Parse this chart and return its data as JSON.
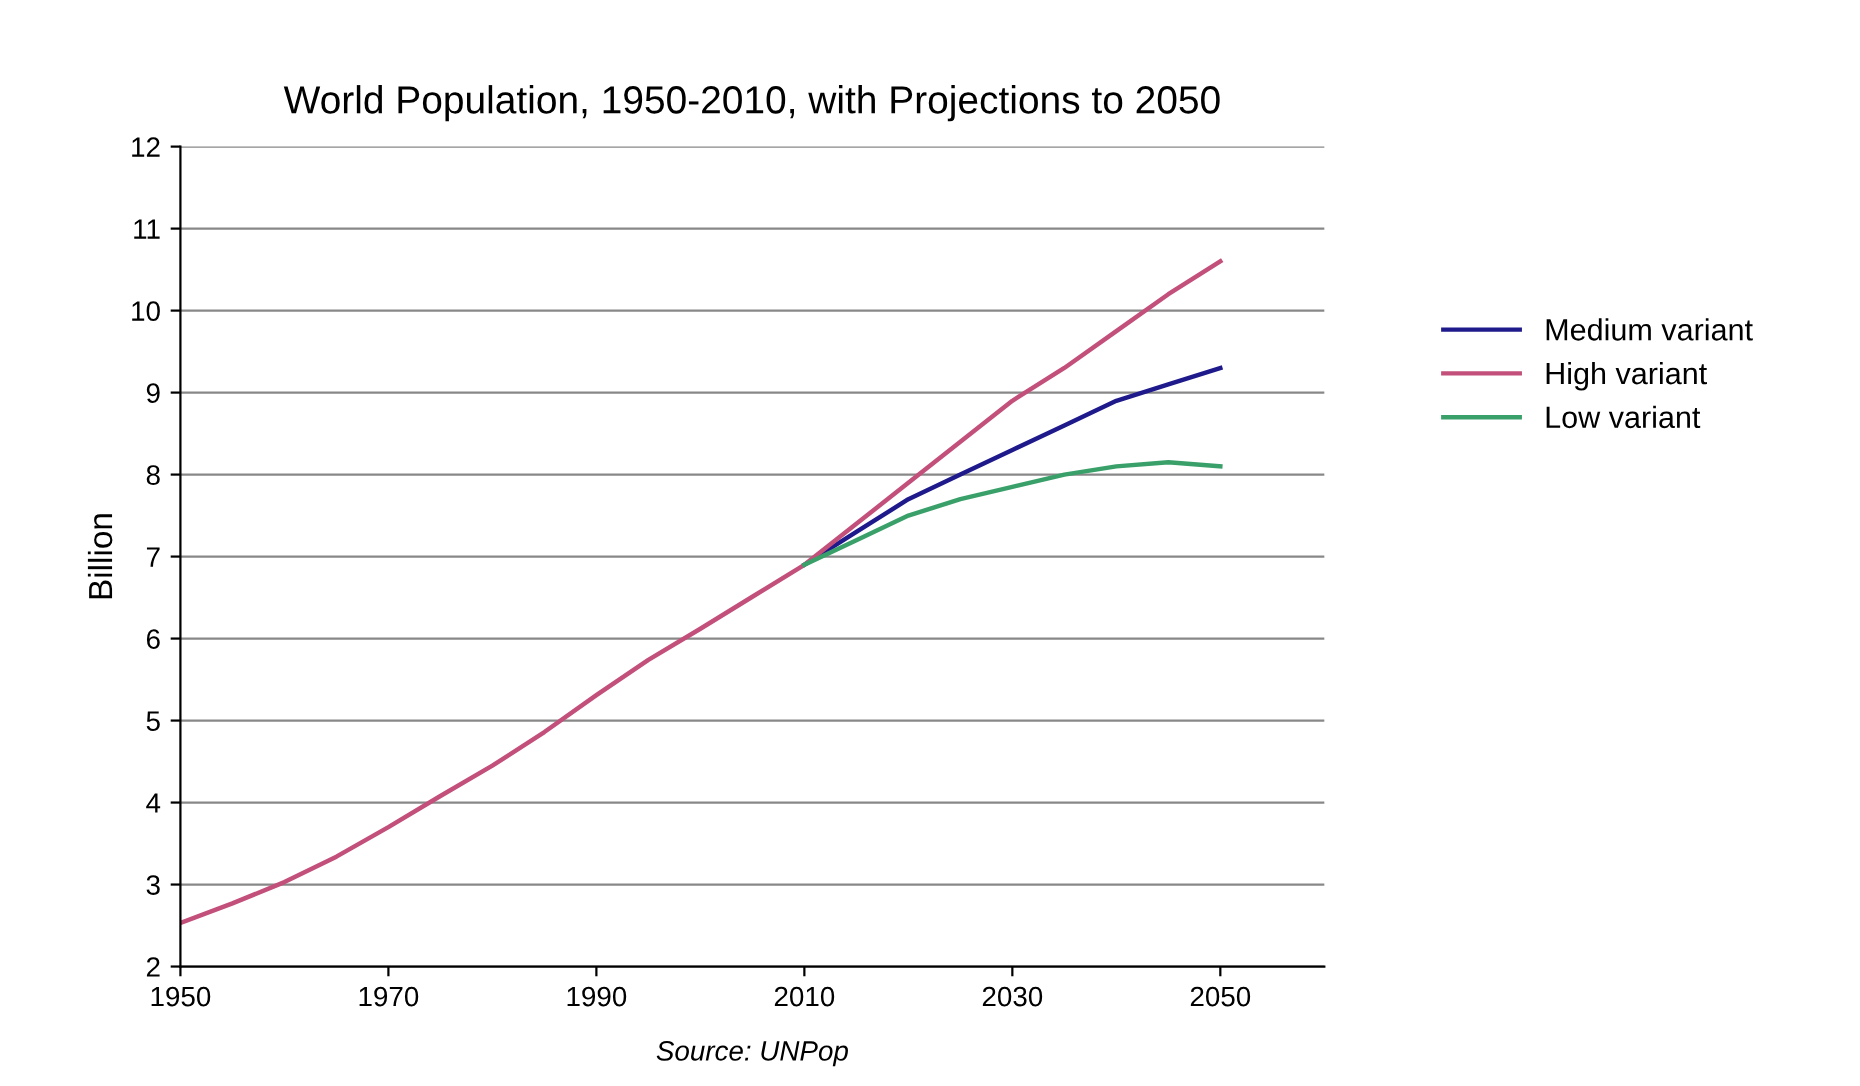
{
  "chart_data": {
    "type": "line",
    "title": "World Population, 1950-2010, with Projections to 2050",
    "ylabel": "Billion",
    "annotations": [
      "Source: UNPop"
    ],
    "xlim": [
      1950,
      2060
    ],
    "xticks": [
      1950,
      1970,
      1990,
      2010,
      2030,
      2050
    ],
    "ylim": [
      2,
      12
    ],
    "yticks": [
      2,
      3,
      4,
      5,
      6,
      7,
      8,
      9,
      10,
      11,
      12
    ],
    "grid": "y",
    "legend": "right",
    "marker": "none",
    "line_style": "solid",
    "series": [
      {
        "name": "Medium variant",
        "color": "#1f1a8c",
        "x": [
          2010,
          2015,
          2020,
          2025,
          2030,
          2035,
          2040,
          2045,
          2050
        ],
        "values": [
          6.9,
          7.3,
          7.7,
          8.0,
          8.3,
          8.6,
          8.9,
          9.1,
          9.3
        ]
      },
      {
        "name": "High variant",
        "color": "#c2507a",
        "x": [
          1950,
          1955,
          1960,
          1965,
          1970,
          1975,
          1980,
          1985,
          1990,
          1995,
          2000,
          2005,
          2010,
          2015,
          2020,
          2025,
          2030,
          2035,
          2040,
          2045,
          2050
        ],
        "values": [
          2.53,
          2.77,
          3.03,
          3.34,
          3.7,
          4.08,
          4.45,
          4.86,
          5.31,
          5.74,
          6.12,
          6.51,
          6.9,
          7.4,
          7.9,
          8.4,
          8.9,
          9.3,
          9.75,
          10.2,
          10.6
        ]
      },
      {
        "name": "Low variant",
        "color": "#3aa06a",
        "x": [
          2010,
          2015,
          2020,
          2025,
          2030,
          2035,
          2040,
          2045,
          2050
        ],
        "values": [
          6.9,
          7.2,
          7.5,
          7.7,
          7.85,
          8.0,
          8.1,
          8.15,
          8.1
        ]
      }
    ]
  }
}
